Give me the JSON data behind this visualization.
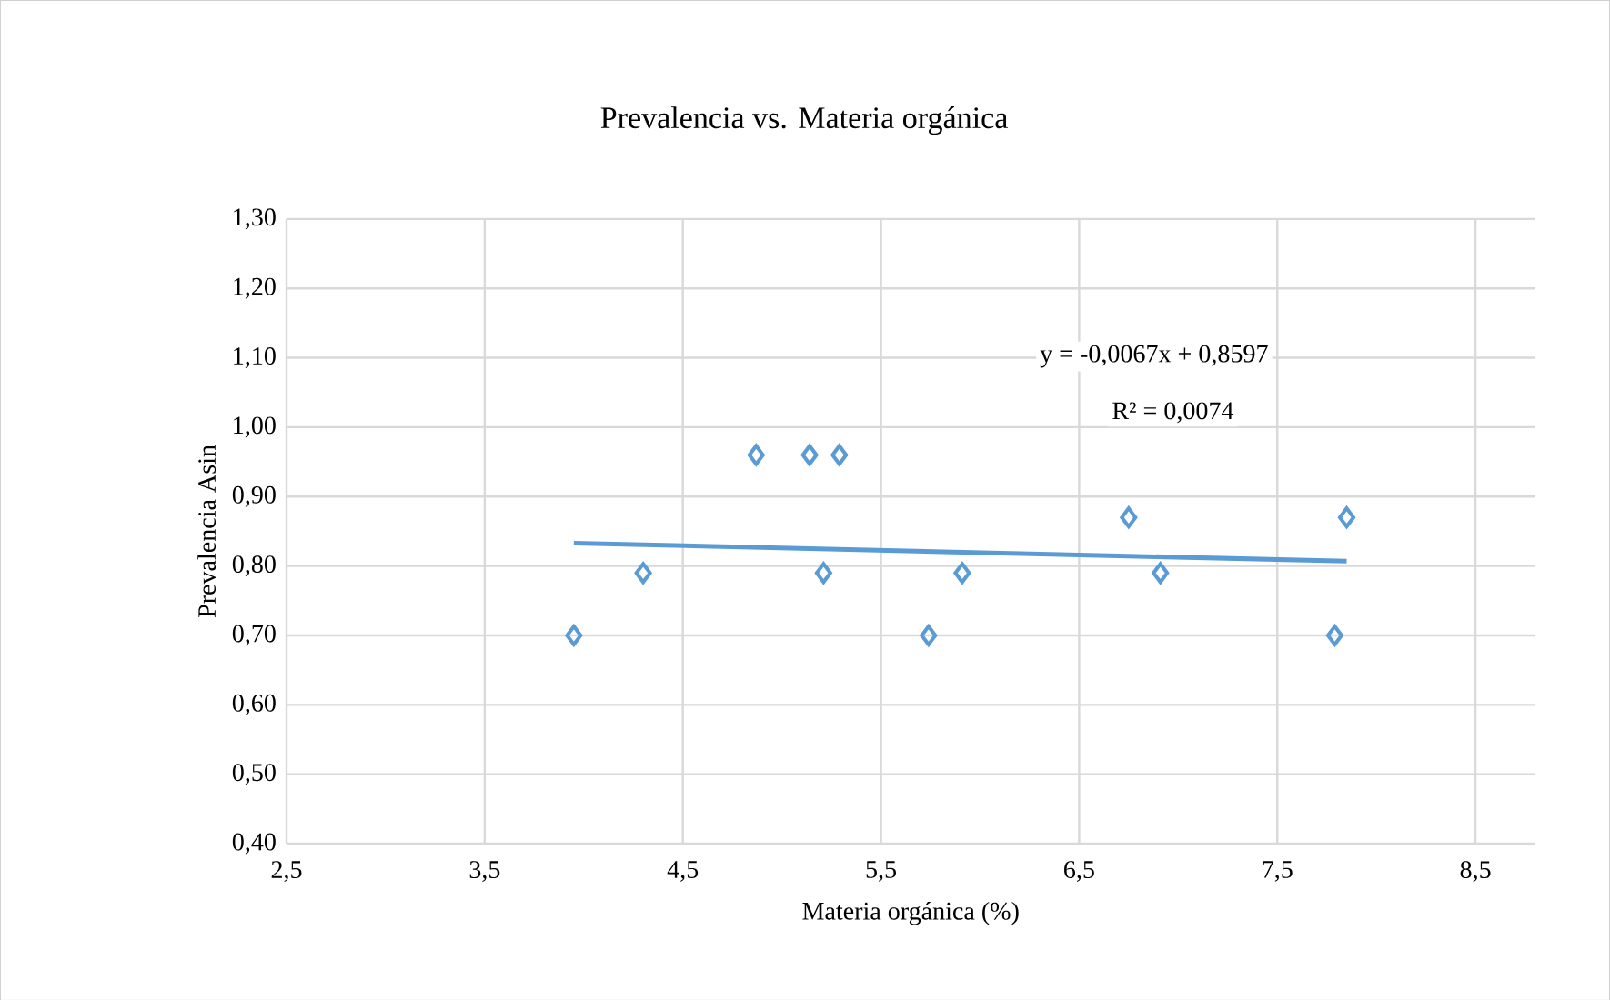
{
  "chart_data": {
    "type": "scatter",
    "title": "Prevalencia vs. Materia orgánica",
    "xlabel": "Materia orgánica (%)",
    "ylabel": "Prevalencia Asin",
    "xlim": [
      2.5,
      8.8
    ],
    "xticks": [
      {
        "value": 2.5,
        "label": "2,5"
      },
      {
        "value": 3.5,
        "label": "3,5"
      },
      {
        "value": 4.5,
        "label": "4,5"
      },
      {
        "value": 5.5,
        "label": "5,5"
      },
      {
        "value": 6.5,
        "label": "6,5"
      },
      {
        "value": 7.5,
        "label": "7,5"
      },
      {
        "value": 8.5,
        "label": "8,5"
      }
    ],
    "ylim": [
      0.4,
      1.3
    ],
    "yticks": [
      {
        "value": 0.4,
        "label": "0,40"
      },
      {
        "value": 0.5,
        "label": "0,50"
      },
      {
        "value": 0.6,
        "label": "0,60"
      },
      {
        "value": 0.7,
        "label": "0,70"
      },
      {
        "value": 0.8,
        "label": "0,80"
      },
      {
        "value": 0.9,
        "label": "0,90"
      },
      {
        "value": 1.0,
        "label": "1,00"
      },
      {
        "value": 1.1,
        "label": "1,10"
      },
      {
        "value": 1.2,
        "label": "1,20"
      },
      {
        "value": 1.3,
        "label": "1,30"
      }
    ],
    "grid": true,
    "marker": "diamond",
    "series": [
      {
        "color": "#5b9bd5",
        "x": [
          3.95,
          4.3,
          4.87,
          5.14,
          5.29,
          5.21,
          5.74,
          5.91,
          6.75,
          6.91,
          7.79,
          7.85
        ],
        "values": [
          0.7,
          0.79,
          0.96,
          0.96,
          0.96,
          0.79,
          0.7,
          0.79,
          0.87,
          0.79,
          0.7,
          0.87
        ]
      },
      {
        "type": "line",
        "color": "#5b9bd5",
        "marker": "none",
        "x": [
          3.95,
          7.85
        ],
        "values": [
          0.833,
          0.807
        ]
      }
    ],
    "annotations": [
      "y = -0,0067x + 0,8597",
      "R² = 0,0074"
    ]
  }
}
